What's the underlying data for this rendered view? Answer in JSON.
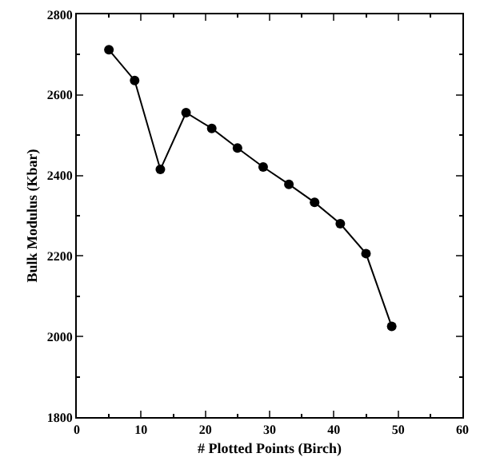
{
  "chart_data": {
    "type": "line",
    "xlabel": "# Plotted Points (Birch)",
    "ylabel": "Bulk Modulus (Kbar)",
    "x": [
      5,
      9,
      13,
      17,
      21,
      25,
      29,
      33,
      37,
      41,
      45,
      49
    ],
    "series": [
      {
        "color": "#000000",
        "values": [
          2712,
          2636,
          2415,
          2556,
          2517,
          2468,
          2421,
          2378,
          2333,
          2280,
          2206,
          2025
        ]
      }
    ],
    "xlim": [
      0,
      60
    ],
    "xticks": [
      0,
      10,
      20,
      30,
      40,
      50,
      60
    ],
    "ylim": [
      1800,
      2800
    ],
    "yticks": [
      1800,
      2000,
      2200,
      2400,
      2600,
      2800
    ],
    "marker": "circle",
    "line_style": "solid"
  }
}
